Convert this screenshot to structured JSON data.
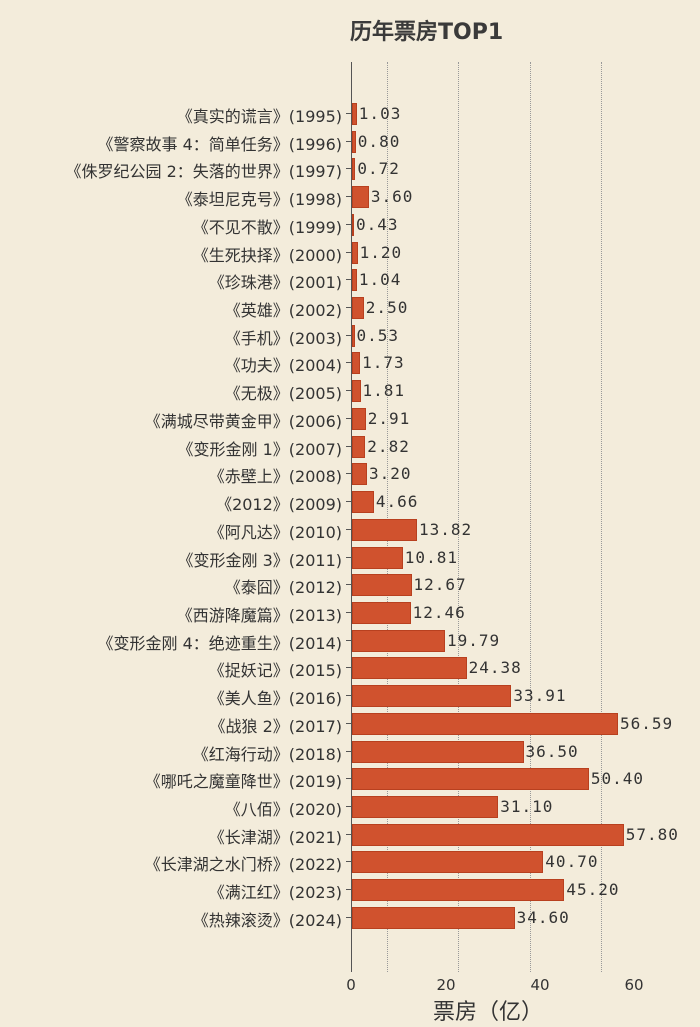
{
  "chart_data": {
    "type": "bar",
    "orientation": "horizontal",
    "title": "历年票房TOP1",
    "xlabel": "票房（亿）",
    "ylabel": "",
    "xlim": [
      0,
      65
    ],
    "xticks": [
      0,
      20,
      40,
      60
    ],
    "grid": "vertical dotted",
    "legend": null,
    "categories": [
      "《真实的谎言》(1995)",
      "《警察故事 4：简单任务》(1996)",
      "《侏罗纪公园 2：失落的世界》(1997)",
      "《泰坦尼克号》(1998)",
      "《不见不散》(1999)",
      "《生死抉择》(2000)",
      "《珍珠港》(2001)",
      "《英雄》(2002)",
      "《手机》(2003)",
      "《功夫》(2004)",
      "《无极》(2005)",
      "《满城尽带黄金甲》(2006)",
      "《变形金刚 1》(2007)",
      "《赤壁上》(2008)",
      "《2012》(2009)",
      "《阿凡达》(2010)",
      "《变形金刚 3》(2011)",
      "《泰囧》(2012)",
      "《西游降魔篇》(2013)",
      "《变形金刚 4：绝迹重生》(2014)",
      "《捉妖记》(2015)",
      "《美人鱼》(2016)",
      "《战狼 2》(2017)",
      "《红海行动》(2018)",
      "《哪吒之魔童降世》(2019)",
      "《八佰》(2020)",
      "《长津湖》(2021)",
      "《长津湖之水门桥》(2022)",
      "《满江红》(2023)",
      "《热辣滚烫》(2024)"
    ],
    "values": [
      1.03,
      0.8,
      0.72,
      3.6,
      0.43,
      1.2,
      1.04,
      2.5,
      0.53,
      1.73,
      1.81,
      2.91,
      2.82,
      3.2,
      4.66,
      13.82,
      10.81,
      12.67,
      12.46,
      19.79,
      24.38,
      33.91,
      56.59,
      36.5,
      50.4,
      31.1,
      57.8,
      40.7,
      45.2,
      34.6
    ],
    "value_labels": [
      "1.03",
      "0.80",
      "0.72",
      "3.60",
      "0.43",
      "1.20",
      "1.04",
      "2.50",
      "0.53",
      "1.73",
      "1.81",
      "2.91",
      "2.82",
      "3.20",
      "4.66",
      "13.82",
      "10.81",
      "12.67",
      "12.46",
      "19.79",
      "24.38",
      "33.91",
      "56.59",
      "36.50",
      "50.40",
      "31.10",
      "57.80",
      "40.70",
      "45.20",
      "34.60"
    ],
    "bar_color": "#d0522e"
  },
  "axis": {
    "ticks": [
      "0",
      "20",
      "40",
      "60"
    ]
  }
}
